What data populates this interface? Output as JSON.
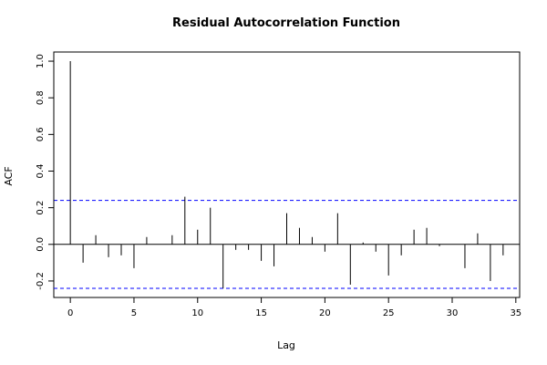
{
  "chart_data": {
    "type": "bar",
    "title": "Residual Autocorrelation Function",
    "xlabel": "Lag",
    "ylabel": "ACF",
    "xlim": [
      -1.3,
      35.3
    ],
    "ylim": [
      -0.29,
      1.05
    ],
    "xticks": [
      0,
      5,
      10,
      15,
      20,
      25,
      30,
      35
    ],
    "yticks": [
      -0.2,
      0.0,
      0.2,
      0.4,
      0.6,
      0.8,
      1.0
    ],
    "ytick_labels": [
      "-0.2",
      "0.0",
      "0.2",
      "0.4",
      "0.6",
      "0.8",
      "1.0"
    ],
    "confidence_bounds": [
      0.24,
      -0.24
    ],
    "lags": [
      0,
      1,
      2,
      3,
      4,
      5,
      6,
      7,
      8,
      9,
      10,
      11,
      12,
      13,
      14,
      15,
      16,
      17,
      18,
      19,
      20,
      21,
      22,
      23,
      24,
      25,
      26,
      27,
      28,
      29,
      30,
      31,
      32,
      33,
      34
    ],
    "values": [
      1.0,
      -0.1,
      0.05,
      -0.07,
      -0.06,
      -0.13,
      0.04,
      0.0,
      0.05,
      0.26,
      0.08,
      0.2,
      -0.24,
      -0.03,
      -0.03,
      -0.09,
      -0.12,
      0.17,
      0.09,
      0.04,
      -0.04,
      0.17,
      -0.22,
      0.01,
      -0.04,
      -0.17,
      -0.06,
      0.08,
      0.09,
      -0.01,
      0.0,
      -0.13,
      0.06,
      -0.2,
      -0.06
    ],
    "grid": false,
    "colors": {
      "bars": "#000000",
      "bounds": "#0000ff",
      "frame": "#000000"
    }
  }
}
